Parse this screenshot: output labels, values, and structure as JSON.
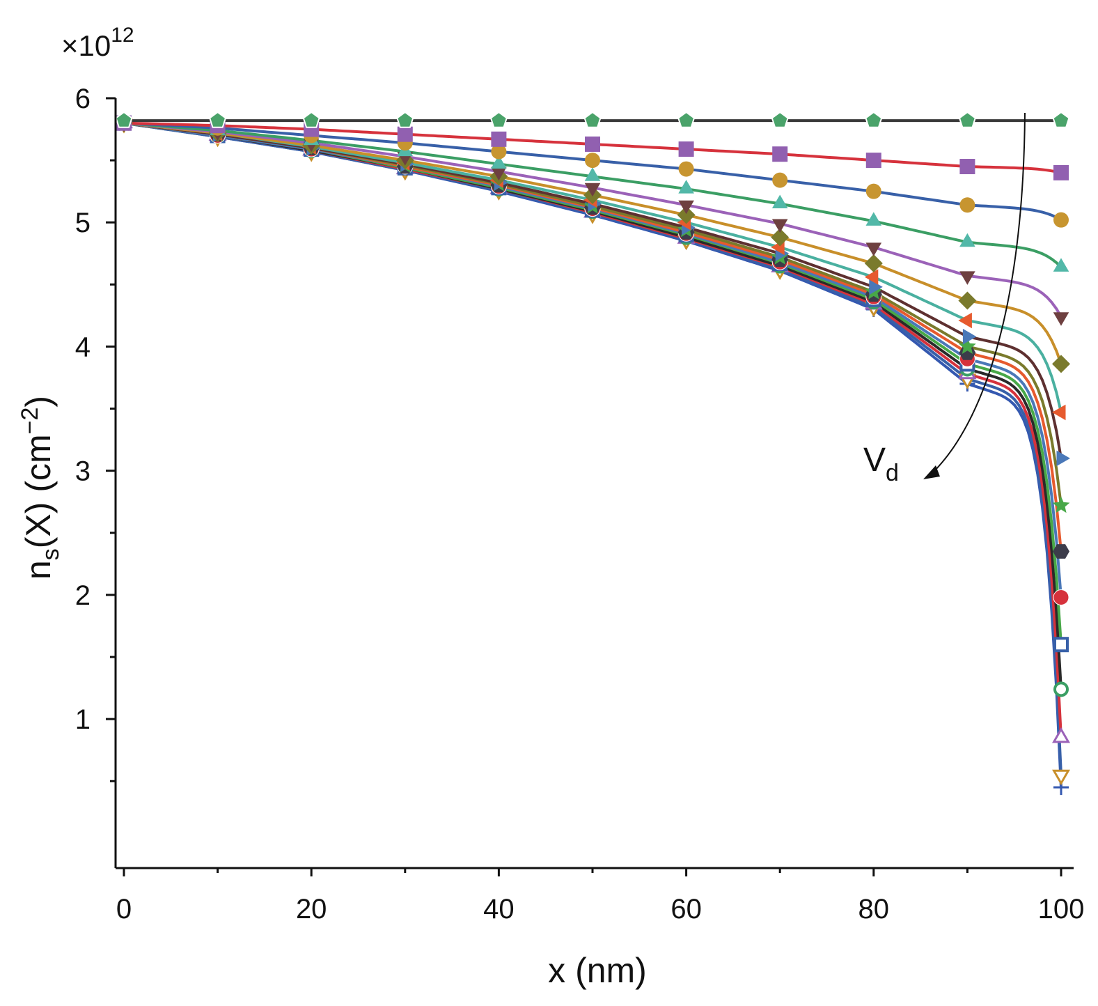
{
  "chart_data": {
    "type": "line",
    "xlabel": "x (nm)",
    "ylabel": {
      "base": "n",
      "sub": "s",
      "rest": "(X) (cm",
      "exp": "−2",
      "close": ")"
    },
    "multiplier": {
      "base": "×10",
      "exp": "12"
    },
    "xlim": [
      0,
      100
    ],
    "ylim": [
      -0.2,
      6
    ],
    "x_ticks": [
      "0",
      "20",
      "40",
      "60",
      "80",
      "100"
    ],
    "x_tick_values": [
      0,
      20,
      40,
      60,
      80,
      100
    ],
    "y_ticks": [
      "1",
      "2",
      "3",
      "4",
      "5",
      "6"
    ],
    "y_tick_values": [
      1,
      2,
      3,
      4,
      5,
      6
    ],
    "annotation": {
      "base": "V",
      "sub": "d"
    },
    "grid": false,
    "legend": "none",
    "marker_x": [
      0,
      10,
      20,
      30,
      40,
      50,
      60,
      70,
      80,
      90,
      100
    ],
    "series": [
      {
        "color": "#3a3a3a",
        "marker": "pentagon",
        "marker_color": "#4aa36a",
        "x": [
          0,
          10,
          20,
          30,
          40,
          50,
          60,
          70,
          80,
          90,
          100
        ],
        "values": [
          5.82,
          5.82,
          5.82,
          5.82,
          5.82,
          5.82,
          5.82,
          5.82,
          5.82,
          5.82,
          5.82
        ]
      },
      {
        "color": "#d6323c",
        "marker": "square",
        "marker_color": "#9160b0",
        "x": [
          0,
          10,
          20,
          30,
          40,
          50,
          60,
          70,
          80,
          90,
          100
        ],
        "values": [
          5.8,
          5.78,
          5.75,
          5.71,
          5.67,
          5.63,
          5.59,
          5.55,
          5.5,
          5.45,
          5.4
        ]
      },
      {
        "color": "#3860a8",
        "marker": "circle",
        "marker_color": "#c79530",
        "x": [
          0,
          10,
          20,
          30,
          40,
          50,
          60,
          70,
          80,
          90,
          100
        ],
        "values": [
          5.8,
          5.76,
          5.7,
          5.64,
          5.57,
          5.5,
          5.43,
          5.34,
          5.25,
          5.14,
          5.02
        ]
      },
      {
        "color": "#3b9e64",
        "marker": "triangle-up",
        "marker_color": "#52b8a8",
        "x": [
          0,
          10,
          20,
          30,
          40,
          50,
          60,
          70,
          80,
          90,
          100
        ],
        "values": [
          5.8,
          5.74,
          5.66,
          5.57,
          5.47,
          5.37,
          5.27,
          5.15,
          5.01,
          4.84,
          4.64
        ]
      },
      {
        "color": "#9b62b8",
        "marker": "triangle-down",
        "marker_color": "#6e4040",
        "x": [
          0,
          10,
          20,
          30,
          40,
          50,
          60,
          70,
          80,
          90,
          100
        ],
        "values": [
          5.8,
          5.73,
          5.64,
          5.53,
          5.41,
          5.28,
          5.14,
          4.99,
          4.8,
          4.57,
          4.24
        ]
      },
      {
        "color": "#c88f2a",
        "marker": "diamond",
        "marker_color": "#7a7a2c",
        "x": [
          0,
          10,
          20,
          30,
          40,
          50,
          60,
          70,
          80,
          90,
          100
        ],
        "values": [
          5.8,
          5.72,
          5.62,
          5.5,
          5.37,
          5.22,
          5.06,
          4.88,
          4.67,
          4.37,
          3.86
        ]
      },
      {
        "color": "#4ab0a0",
        "marker": "triangle-left",
        "marker_color": "#e65a2e",
        "x": [
          0,
          10,
          20,
          30,
          40,
          50,
          60,
          70,
          80,
          90,
          100
        ],
        "values": [
          5.8,
          5.72,
          5.61,
          5.48,
          5.34,
          5.18,
          5.0,
          4.8,
          4.56,
          4.21,
          3.47
        ]
      },
      {
        "color": "#5e3030",
        "marker": "triangle-right",
        "marker_color": "#4a78b8",
        "x": [
          0,
          10,
          20,
          30,
          40,
          50,
          60,
          70,
          80,
          90,
          100
        ],
        "values": [
          5.8,
          5.71,
          5.6,
          5.47,
          5.32,
          5.15,
          4.96,
          4.75,
          4.48,
          4.08,
          3.1
        ]
      },
      {
        "color": "#7a7a2c",
        "marker": "star",
        "marker_color": "#48a848",
        "x": [
          0,
          10,
          20,
          30,
          40,
          50,
          60,
          70,
          80,
          90,
          100
        ],
        "values": [
          5.8,
          5.71,
          5.6,
          5.46,
          5.31,
          5.13,
          4.94,
          4.72,
          4.44,
          4.0,
          2.72
        ]
      },
      {
        "color": "#e65a2e",
        "marker": "hexagon",
        "marker_color": "#3c3c4a",
        "x": [
          0,
          10,
          20,
          30,
          40,
          50,
          60,
          70,
          80,
          90,
          100
        ],
        "values": [
          5.8,
          5.71,
          5.6,
          5.45,
          5.3,
          5.12,
          4.92,
          4.7,
          4.42,
          3.95,
          2.35
        ]
      },
      {
        "color": "#4a78b8",
        "marker": "circle-half",
        "marker_color": "#d6323c",
        "x": [
          0,
          10,
          20,
          30,
          40,
          50,
          60,
          70,
          80,
          90,
          100
        ],
        "values": [
          5.8,
          5.7,
          5.59,
          5.45,
          5.29,
          5.11,
          4.91,
          4.68,
          4.4,
          3.9,
          1.98
        ]
      },
      {
        "color": "#48a848",
        "marker": "square-open",
        "marker_color": "#3860a8",
        "x": [
          0,
          10,
          20,
          30,
          40,
          50,
          60,
          70,
          80,
          90,
          100
        ],
        "values": [
          5.8,
          5.7,
          5.59,
          5.44,
          5.28,
          5.1,
          4.9,
          4.67,
          4.38,
          3.86,
          1.6
        ]
      },
      {
        "color": "#2a2a2a",
        "marker": "circle-open",
        "marker_color": "#3b9e64",
        "x": [
          0,
          10,
          20,
          30,
          40,
          50,
          60,
          70,
          80,
          90,
          100
        ],
        "values": [
          5.8,
          5.7,
          5.58,
          5.44,
          5.27,
          5.09,
          4.88,
          4.65,
          4.36,
          3.82,
          1.24
        ]
      },
      {
        "color": "#d6323c",
        "marker": "triangle-up-open",
        "marker_color": "#9b62b8",
        "x": [
          0,
          10,
          20,
          30,
          40,
          50,
          60,
          70,
          80,
          90,
          100
        ],
        "values": [
          5.8,
          5.7,
          5.58,
          5.43,
          5.27,
          5.08,
          4.87,
          4.64,
          4.34,
          3.78,
          0.85
        ]
      },
      {
        "color": "#3860a8",
        "marker": "triangle-down-open",
        "marker_color": "#c88f2a",
        "x": [
          0,
          10,
          20,
          30,
          40,
          50,
          60,
          70,
          80,
          90,
          100
        ],
        "values": [
          5.8,
          5.69,
          5.57,
          5.42,
          5.26,
          5.07,
          4.86,
          4.62,
          4.32,
          3.74,
          0.55
        ]
      },
      {
        "color": "#3458b0",
        "marker": "plus",
        "marker_color": "#3458b0",
        "x": [
          0,
          10,
          20,
          30,
          40,
          50,
          60,
          70,
          80,
          90,
          100
        ],
        "values": [
          5.8,
          5.69,
          5.57,
          5.42,
          5.25,
          5.06,
          4.85,
          4.61,
          4.3,
          3.7,
          0.45
        ]
      }
    ]
  }
}
